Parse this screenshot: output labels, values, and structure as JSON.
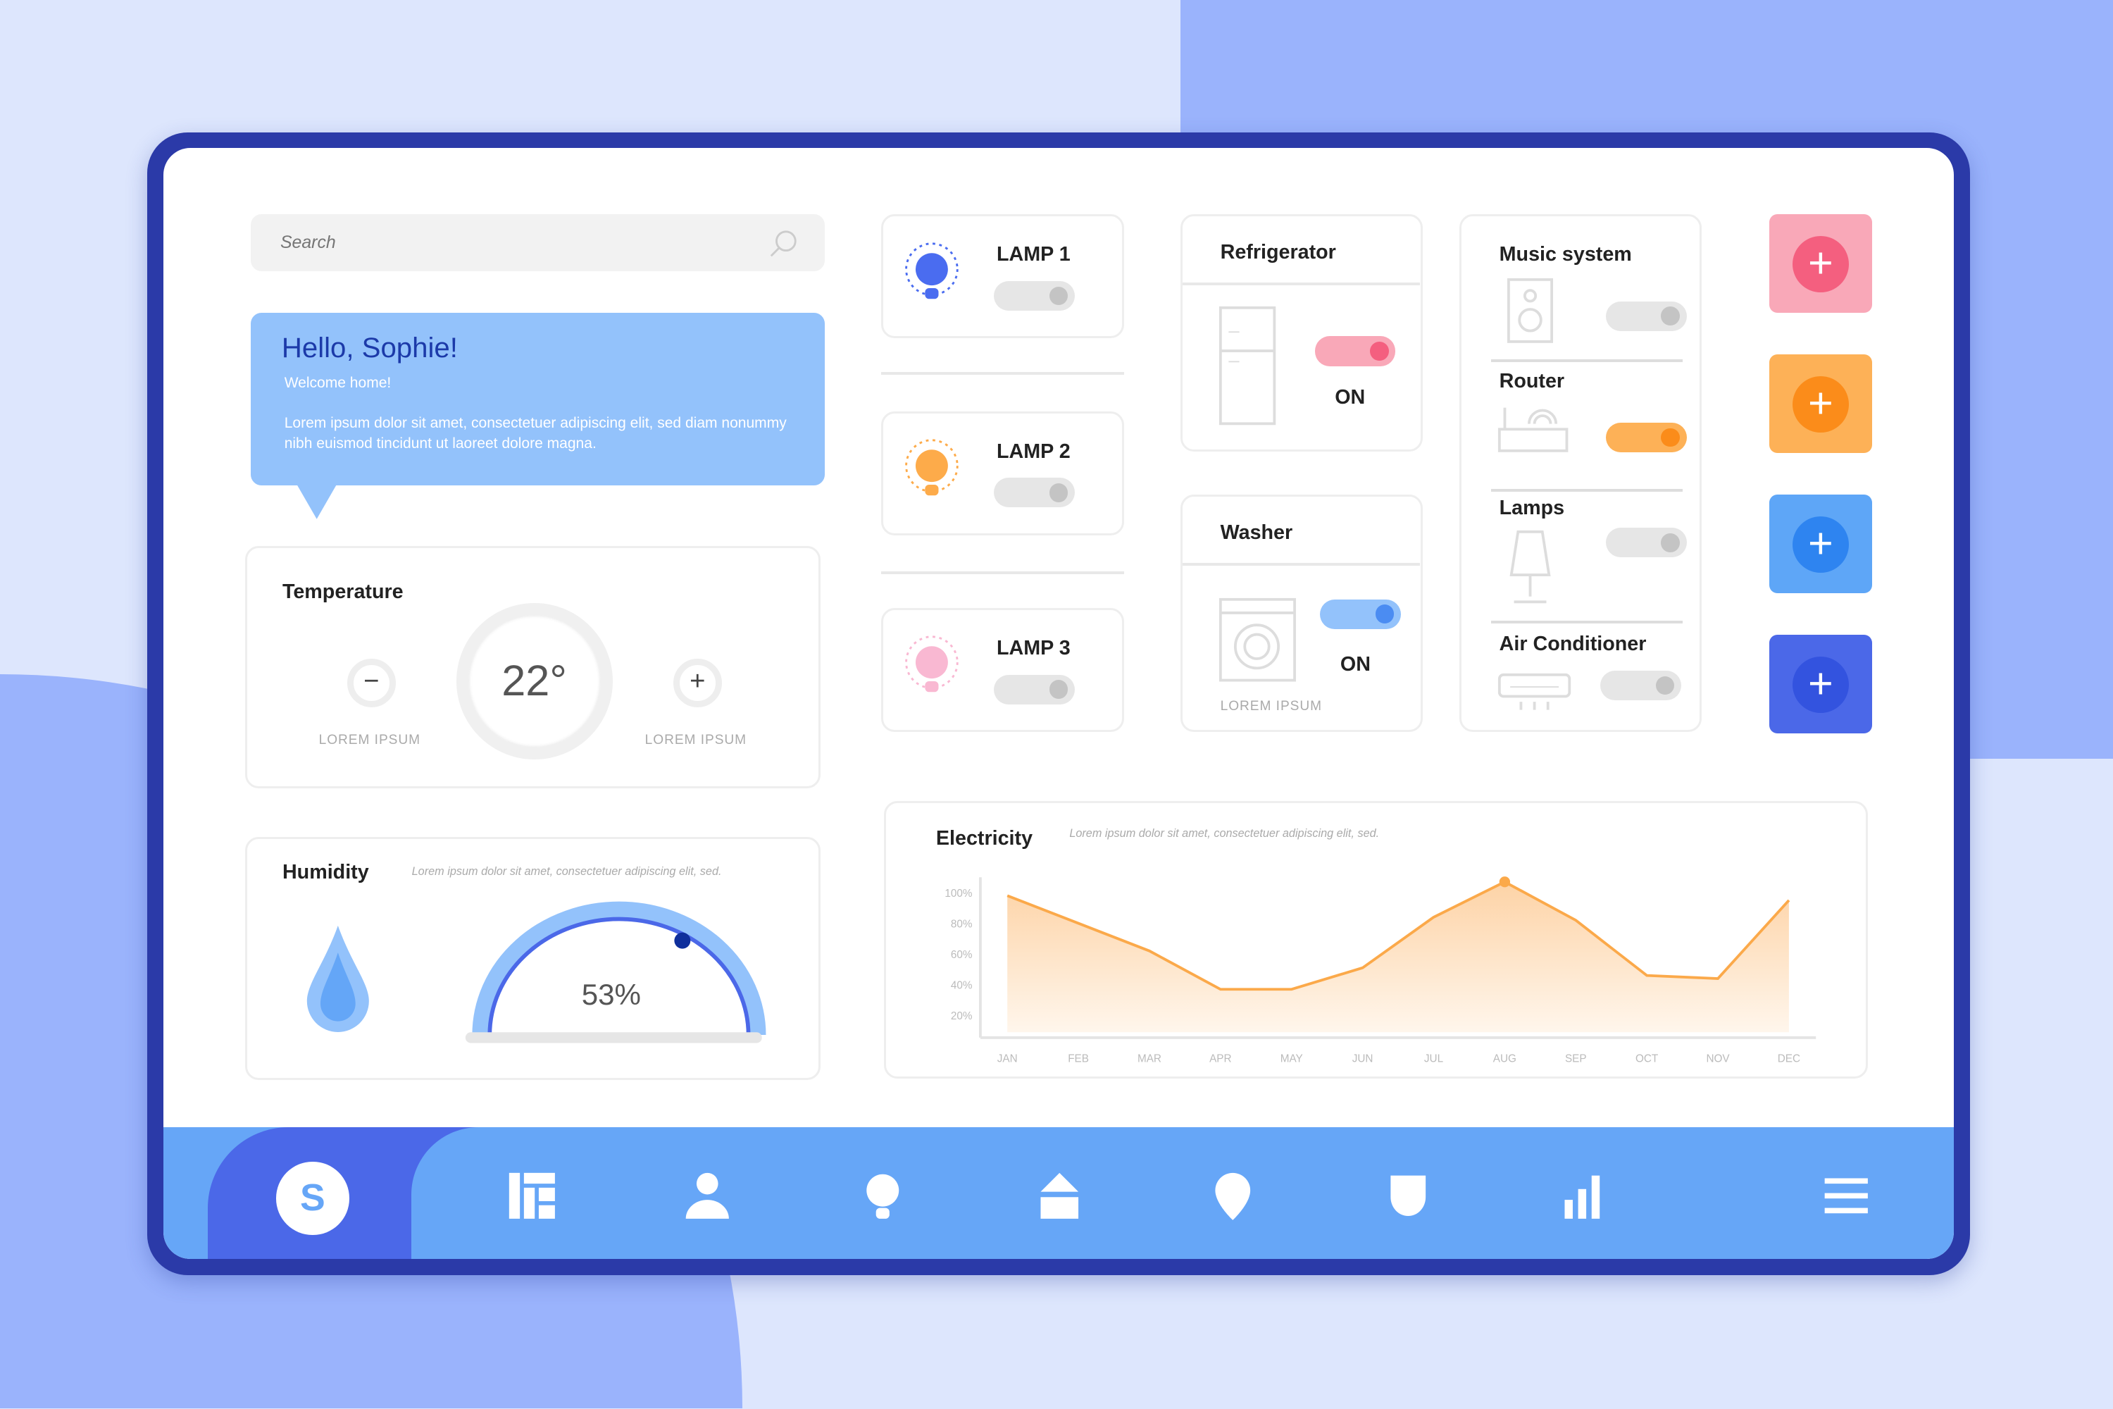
{
  "search": {
    "placeholder": "Search"
  },
  "greeting": {
    "title": "Hello, Sophie!",
    "subtitle": "Welcome home!",
    "body": "Lorem ipsum dolor sit amet, consectetuer adipiscing elit, sed diam nonummy nibh euismod tincidunt ut laoreet dolore magna."
  },
  "temperature": {
    "title": "Temperature",
    "value": "22°",
    "minus_label": "LOREM IPSUM",
    "plus_label": "LOREM IPSUM"
  },
  "humidity": {
    "title": "Humidity",
    "desc": "Lorem ipsum dolor sit amet, consectetuer adipiscing elit, sed.",
    "value": "53%",
    "level": 0.53
  },
  "lamps": [
    {
      "label": "LAMP 1",
      "color": "#4a6cf0",
      "on": false
    },
    {
      "label": "LAMP 2",
      "color": "#fdab4a",
      "on": false
    },
    {
      "label": "LAMP 3",
      "color": "#f9b8d2",
      "on": false
    }
  ],
  "refrigerator": {
    "title": "Refrigerator",
    "state": "ON",
    "on": true
  },
  "washer": {
    "title": "Washer",
    "state": "ON",
    "footer": "LOREM IPSUM",
    "on": true
  },
  "devices": [
    {
      "label": "Music system",
      "on": false
    },
    {
      "label": "Router",
      "on": true
    },
    {
      "label": "Lamps",
      "on": false
    },
    {
      "label": "Air Conditioner",
      "on": false
    }
  ],
  "add_buttons": [
    {
      "color": "#f9a8b8",
      "inner": "#f45f7f"
    },
    {
      "color": "#fdb157",
      "inner": "#fb8c1a"
    },
    {
      "color": "#5ea6f7",
      "inner": "#2e84f0"
    },
    {
      "color": "#4b68e8",
      "inner": "#3353df"
    }
  ],
  "nav": {
    "avatar": "S",
    "items": [
      "dashboard-icon",
      "user-icon",
      "bulb-icon",
      "home-icon",
      "location-icon",
      "shield-icon",
      "stats-icon",
      "menu-icon"
    ]
  },
  "chart_data": {
    "type": "area",
    "title": "Electricity",
    "subtitle": "Lorem ipsum dolor sit amet, consectetuer adipiscing elit, sed.",
    "categories": [
      "JAN",
      "FEB",
      "MAR",
      "APR",
      "MAY",
      "JUN",
      "JUL",
      "AUG",
      "SEP",
      "OCT",
      "NOV",
      "DEC"
    ],
    "values": [
      98,
      80,
      62,
      37,
      37,
      51,
      84,
      107,
      82,
      46,
      44,
      95
    ],
    "yticks": [
      "100%",
      "80%",
      "60%",
      "40%",
      "20%"
    ],
    "ylim": [
      9,
      110
    ],
    "highlight": "AUG",
    "color": "#fba94a",
    "grid": false
  }
}
